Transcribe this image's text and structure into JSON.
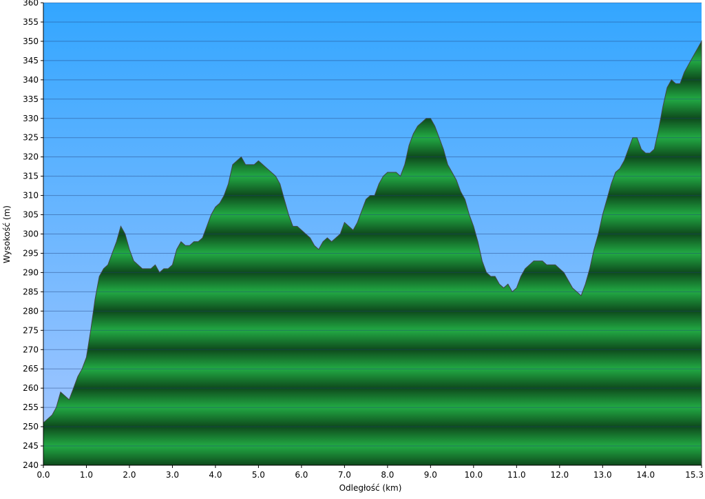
{
  "chart_data": {
    "type": "area",
    "x_label": "Odległość   (km)",
    "y_label": "Wysokość (m)",
    "color": "#22aa44",
    "line_color": "#444444",
    "grid": true,
    "xlim": [
      0,
      15.3
    ],
    "xticks": [
      {
        "value": 0,
        "label": "0.0"
      },
      {
        "value": 1,
        "label": "1.0"
      },
      {
        "value": 2,
        "label": "2.0"
      },
      {
        "value": 3,
        "label": "3.0"
      },
      {
        "value": 4,
        "label": "4.0"
      },
      {
        "value": 5,
        "label": "5.0"
      },
      {
        "value": 6,
        "label": "6.0"
      },
      {
        "value": 7,
        "label": "7.0"
      },
      {
        "value": 8,
        "label": "8.0"
      },
      {
        "value": 9,
        "label": "9.0"
      },
      {
        "value": 10,
        "label": "10.0"
      },
      {
        "value": 11,
        "label": "11.0"
      },
      {
        "value": 12,
        "label": "12.0"
      },
      {
        "value": 13,
        "label": "13.0"
      },
      {
        "value": 14,
        "label": "14.0"
      },
      15.3
    ],
    "ylim": [
      240,
      360
    ],
    "yticks": [
      240,
      245,
      250,
      255,
      260,
      265,
      270,
      275,
      280,
      285,
      290,
      295,
      300,
      305,
      310,
      315,
      320,
      325,
      330,
      335,
      340,
      345,
      350,
      355,
      360
    ],
    "x": [
      0,
      0.1,
      0.2,
      0.3,
      0.4,
      0.5,
      0.6,
      0.7,
      0.8,
      0.9,
      1,
      1.1,
      1.2,
      1.3,
      1.4,
      1.5,
      1.6,
      1.7,
      1.8,
      1.9,
      2,
      2.1,
      2.2,
      2.3,
      2.4,
      2.5,
      2.6,
      2.7,
      2.8,
      2.9,
      3,
      3.1,
      3.2,
      3.3,
      3.4,
      3.5,
      3.6,
      3.7,
      3.8,
      3.9,
      4,
      4.1,
      4.2,
      4.3,
      4.4,
      4.5,
      4.6,
      4.7,
      4.8,
      4.9,
      5,
      5.1,
      5.2,
      5.3,
      5.4,
      5.5,
      5.6,
      5.7,
      5.8,
      5.9,
      6,
      6.1,
      6.2,
      6.3,
      6.4,
      6.5,
      6.6,
      6.7,
      6.8,
      6.9,
      7,
      7.1,
      7.2,
      7.3,
      7.4,
      7.5,
      7.6,
      7.7,
      7.8,
      7.9,
      8,
      8.1,
      8.2,
      8.3,
      8.4,
      8.5,
      8.6,
      8.7,
      8.8,
      8.9,
      9,
      9.1,
      9.2,
      9.3,
      9.4,
      9.5,
      9.6,
      9.7,
      9.8,
      9.9,
      10,
      10.1,
      10.2,
      10.3,
      10.4,
      10.5,
      10.6,
      10.7,
      10.8,
      10.9,
      11,
      11.1,
      11.2,
      11.3,
      11.4,
      11.5,
      11.6,
      11.7,
      11.8,
      11.9,
      12,
      12.1,
      12.2,
      12.3,
      12.4,
      12.5,
      12.6,
      12.7,
      12.8,
      12.9,
      13,
      13.1,
      13.2,
      13.3,
      13.4,
      13.5,
      13.6,
      13.7,
      13.8,
      13.9,
      14,
      14.1,
      14.2,
      14.3,
      14.4,
      14.5,
      14.6,
      14.7,
      14.8,
      14.9,
      15,
      15.1,
      15.2,
      15.3
    ],
    "values": [
      251,
      252,
      253,
      255,
      259,
      258,
      257,
      260,
      263,
      265,
      268,
      275,
      283,
      289,
      291,
      292,
      295,
      298,
      302,
      300,
      296,
      293,
      292,
      291,
      291,
      291,
      292,
      290,
      291,
      291,
      292,
      296,
      298,
      297,
      297,
      298,
      298,
      299,
      302,
      305,
      307,
      308,
      310,
      313,
      318,
      319,
      320,
      318,
      318,
      318,
      319,
      318,
      317,
      316,
      315,
      313,
      309,
      305,
      302,
      302,
      301,
      300,
      299,
      297,
      296,
      298,
      299,
      298,
      299,
      300,
      303,
      302,
      301,
      303,
      306,
      309,
      310,
      310,
      313,
      315,
      316,
      316,
      316,
      315,
      318,
      323,
      326,
      328,
      329,
      330,
      330,
      328,
      325,
      322,
      318,
      316,
      314,
      311,
      309,
      305,
      302,
      298,
      293,
      290,
      289,
      289,
      287,
      286,
      287,
      285,
      286,
      289,
      291,
      292,
      293,
      293,
      293,
      292,
      292,
      292,
      291,
      290,
      288,
      286,
      285,
      284,
      287,
      291,
      296,
      300,
      305,
      309,
      313,
      316,
      317,
      319,
      322,
      325,
      325,
      322,
      321,
      321,
      322,
      327,
      333,
      338,
      340,
      339,
      339,
      342,
      344,
      346,
      348,
      350
    ]
  }
}
